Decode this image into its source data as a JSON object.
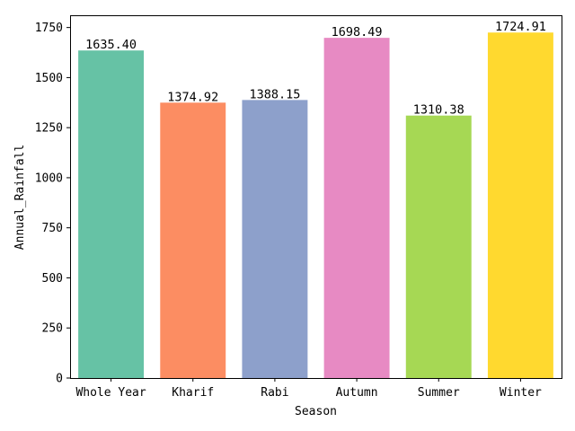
{
  "chart_data": {
    "type": "bar",
    "categories": [
      "Whole Year",
      "Kharif",
      "Rabi",
      "Autumn",
      "Summer",
      "Winter"
    ],
    "values": [
      1635.4,
      1374.92,
      1388.15,
      1698.49,
      1310.38,
      1724.91
    ],
    "value_labels": [
      "1635.40",
      "1374.92",
      "1388.15",
      "1698.49",
      "1310.38",
      "1724.91"
    ],
    "colors": [
      "#66c2a5",
      "#fc8d62",
      "#8da0cb",
      "#e78ac3",
      "#a6d854",
      "#ffd92f"
    ],
    "title": "",
    "xlabel": "Season",
    "ylabel": "Annual_Rainfall",
    "ylim": [
      0,
      1811.16
    ],
    "yticks": [
      0,
      250,
      500,
      750,
      1000,
      1250,
      1500,
      1750
    ],
    "grid": false,
    "legend": "none"
  }
}
